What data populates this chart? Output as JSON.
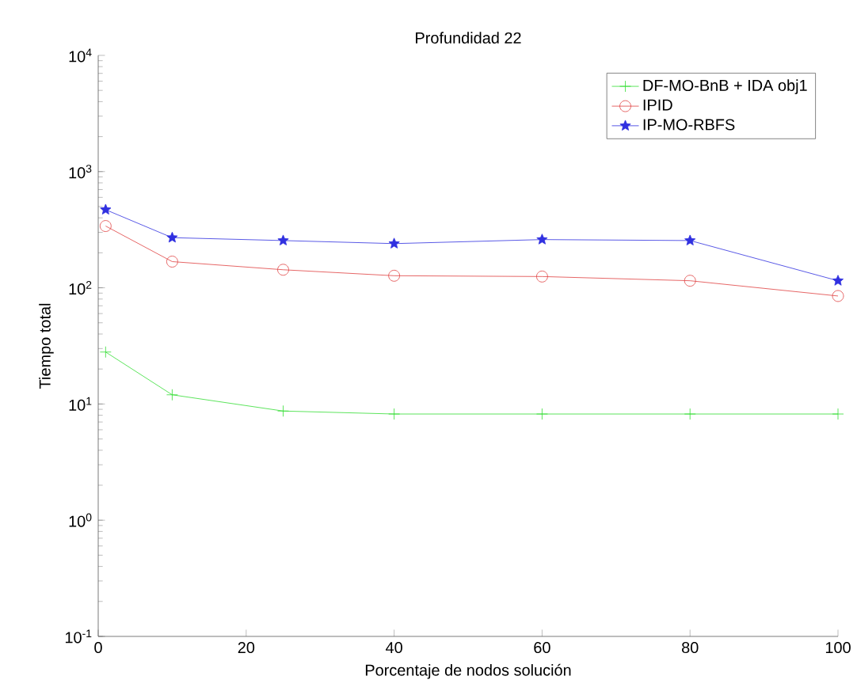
{
  "chart_data": {
    "type": "line",
    "title": "Profundidad 22",
    "xlabel": "Porcentaje de nodos solución",
    "ylabel": "Tiempo total",
    "log": "y",
    "xlim": [
      0,
      100
    ],
    "xticks": [
      0,
      20,
      40,
      60,
      80,
      100
    ],
    "ylim": [
      0.1,
      10000
    ],
    "yticks": [
      {
        "value": 0.1,
        "label": "10$^{-1}$"
      },
      {
        "value": 1,
        "label": "10$^{0}$"
      },
      {
        "value": 10,
        "label": "10$^{1}$"
      },
      {
        "value": 100,
        "label": "10$^{2}$"
      },
      {
        "value": 1000,
        "label": "10$^{3}$"
      },
      {
        "value": 10000,
        "label": "10$^{4}$"
      }
    ],
    "x": [
      1,
      10,
      25,
      40,
      60,
      80,
      100
    ],
    "legend": "top right",
    "grid": false,
    "series": [
      {
        "name": "DF-MO-BnB + IDA obj1",
        "color": "#33dd33",
        "marker": "cross",
        "values": [
          28,
          12,
          8.7,
          8.2,
          8.2,
          8.2,
          8.2
        ]
      },
      {
        "name": "IPID",
        "color": "#e04040",
        "marker": "circle",
        "values": [
          340,
          168,
          143,
          127,
          125,
          115,
          85
        ]
      },
      {
        "name": "IP-MO-RBFS",
        "color": "#3030e0",
        "marker": "star",
        "values": [
          470,
          270,
          255,
          240,
          260,
          255,
          115
        ]
      }
    ]
  }
}
